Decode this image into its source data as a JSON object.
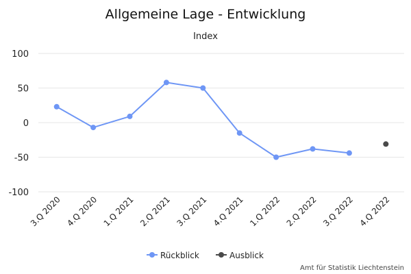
{
  "chart_data": {
    "type": "line",
    "title": "Allgemeine Lage - Entwicklung",
    "subtitle": "Index",
    "xlabel": "",
    "ylabel": "",
    "categories": [
      "3.Q 2020",
      "4.Q 2020",
      "1.Q 2021",
      "2.Q 2021",
      "3.Q 2021",
      "4.Q 2021",
      "1.Q 2022",
      "2.Q 2022",
      "3.Q 2022",
      "4.Q 2022"
    ],
    "ylim": [
      -100,
      100
    ],
    "yticks": [
      "100",
      "50",
      "0",
      "-50",
      "-100"
    ],
    "grid": true,
    "legend_position": "bottom",
    "series": [
      {
        "name": "Rückblick",
        "color": "#6e96f5",
        "values": [
          23,
          -7,
          9,
          58,
          50,
          -15,
          -50,
          -38,
          -44,
          null
        ]
      },
      {
        "name": "Ausblick",
        "color": "#4a4a4a",
        "values": [
          null,
          null,
          null,
          null,
          null,
          null,
          null,
          null,
          null,
          -31
        ]
      }
    ],
    "credits": "Amt für Statistik Liechtenstein"
  }
}
